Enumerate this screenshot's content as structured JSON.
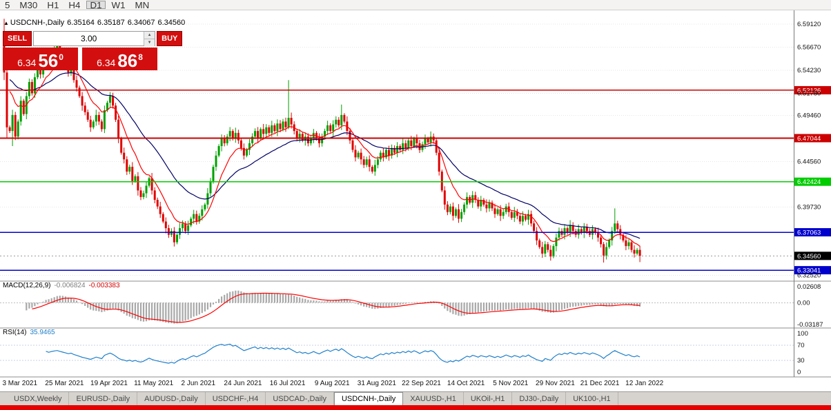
{
  "toolbar": {
    "timeframes": [
      {
        "label": "5",
        "active": false
      },
      {
        "label": "M30",
        "active": false
      },
      {
        "label": "H1",
        "active": false
      },
      {
        "label": "H4",
        "active": false
      },
      {
        "label": "D1",
        "active": true
      },
      {
        "label": "W1",
        "active": false
      },
      {
        "label": "MN",
        "active": false
      }
    ]
  },
  "info_line": {
    "marker": "▲",
    "symbol": "USDCNH-,Daily",
    "open": "6.35164",
    "high": "6.35187",
    "low": "6.34067",
    "close": "6.34560"
  },
  "trade_panel": {
    "sell_label": "SELL",
    "buy_label": "BUY",
    "volume": "3.00",
    "bid": {
      "prefix": "6.34",
      "big": "56",
      "sup": "0"
    },
    "ask": {
      "prefix": "6.34",
      "big": "86",
      "sup": "8"
    }
  },
  "tabs": {
    "items": [
      {
        "label": "USDX,Weekly",
        "active": false
      },
      {
        "label": "EURUSD-,Daily",
        "active": false
      },
      {
        "label": "AUDUSD-,Daily",
        "active": false
      },
      {
        "label": "USDCHF-,H4",
        "active": false
      },
      {
        "label": "USDCAD-,Daily",
        "active": false
      },
      {
        "label": "USDCNH-,Daily",
        "active": true
      },
      {
        "label": "XAUUSD-,H1",
        "active": false
      },
      {
        "label": "UKOil-,H1",
        "active": false
      },
      {
        "label": "DJ30-,Daily",
        "active": false
      },
      {
        "label": "UK100-,H1",
        "active": false
      }
    ]
  },
  "colors": {
    "up": "#00A000",
    "down": "#E00000",
    "ma_fast": "#FF0000",
    "ma_slow": "#000066",
    "hline_red": "#CC0000",
    "hline_green": "#00CC00",
    "hline_blue": "#0000CC",
    "panel_red": "#d30e0e",
    "bottom_strip": "#e60000",
    "rsi_line": "#1e7fcb"
  },
  "chart_data": [
    {
      "id": "main",
      "type": "candlestick",
      "symbol": "USDCNH-,Daily",
      "ylim": [
        6.321,
        6.595
      ],
      "open0": 6.575,
      "closes": [
        6.54,
        6.482,
        6.478,
        6.495,
        6.472,
        6.488,
        6.51,
        6.496,
        6.515,
        6.53,
        6.518,
        6.535,
        6.545,
        6.538,
        6.552,
        6.56,
        6.548,
        6.558,
        6.565,
        6.57,
        6.562,
        6.555,
        6.548,
        6.54,
        6.545,
        6.532,
        6.524,
        6.515,
        6.505,
        6.498,
        6.49,
        6.482,
        6.488,
        6.495,
        6.488,
        6.48,
        6.5,
        6.508,
        6.515,
        6.505,
        6.49,
        6.47,
        6.455,
        6.448,
        6.435,
        6.44,
        6.425,
        6.43,
        6.415,
        6.408,
        6.412,
        6.42,
        6.428,
        6.415,
        6.405,
        6.398,
        6.39,
        6.382,
        6.375,
        6.368,
        6.372,
        6.36,
        6.368,
        6.375,
        6.38,
        6.372,
        6.378,
        6.385,
        6.39,
        6.382,
        6.388,
        6.395,
        6.4,
        6.412,
        6.425,
        6.44,
        6.452,
        6.462,
        6.47,
        6.465,
        6.472,
        6.478,
        6.47,
        6.476,
        6.468,
        6.46,
        6.452,
        6.458,
        6.465,
        6.472,
        6.478,
        6.47,
        6.48,
        6.475,
        6.482,
        6.476,
        6.484,
        6.478,
        6.486,
        6.48,
        6.488,
        6.482,
        6.492,
        6.485,
        6.478,
        6.47,
        6.475,
        6.468,
        6.472,
        6.465,
        6.47,
        6.476,
        6.47,
        6.465,
        6.472,
        6.478,
        6.484,
        6.478,
        6.485,
        6.49,
        6.484,
        6.495,
        6.488,
        6.478,
        6.468,
        6.458,
        6.45,
        6.455,
        6.448,
        6.442,
        6.448,
        6.44,
        6.435,
        6.442,
        6.448,
        6.455,
        6.45,
        6.458,
        6.452,
        6.46,
        6.455,
        6.462,
        6.458,
        6.465,
        6.46,
        6.468,
        6.462,
        6.47,
        6.465,
        6.458,
        6.464,
        6.47,
        6.466,
        6.472,
        6.468,
        6.455,
        6.435,
        6.415,
        6.4,
        6.392,
        6.398,
        6.388,
        6.395,
        6.385,
        6.392,
        6.4,
        6.408,
        6.402,
        6.41,
        6.405,
        6.398,
        6.405,
        6.4,
        6.396,
        6.402,
        6.396,
        6.39,
        6.395,
        6.388,
        6.392,
        6.398,
        6.392,
        6.386,
        6.392,
        6.388,
        6.382,
        6.388,
        6.384,
        6.39,
        6.38,
        6.372,
        6.362,
        6.355,
        6.348,
        6.358,
        6.352,
        6.345,
        6.356,
        6.365,
        6.372,
        6.368,
        6.375,
        6.37,
        6.378,
        6.372,
        6.368,
        6.374,
        6.37,
        6.376,
        6.372,
        6.368,
        6.374,
        6.37,
        6.365,
        6.358,
        6.346,
        6.355,
        6.362,
        6.372,
        6.38,
        6.374,
        6.368,
        6.362,
        6.356,
        6.36,
        6.352,
        6.348,
        6.352,
        6.3456
      ],
      "wick_pattern": [
        0.0028,
        0.0042,
        0.0019,
        0.0055,
        0.0033,
        0.0024,
        0.0049,
        0.0021,
        0.0044,
        0.0036
      ],
      "overrides": {
        "0": {
          "h": 6.597,
          "l": 6.532
        },
        "1": {
          "h": 6.556,
          "l": 6.47
        },
        "3": {
          "l": 6.462
        },
        "61": {
          "l": 6.3555
        },
        "102": {
          "h": 6.532
        },
        "121": {
          "h": 6.506
        },
        "196": {
          "l": 6.3405
        },
        "215": {
          "l": 6.3385
        },
        "219": {
          "h": 6.396
        },
        "228": {
          "l": 6.339
        }
      },
      "up_color": "#00A000",
      "down_color": "#E00000",
      "ma_fast": {
        "name": "MA fast",
        "period": 10,
        "color": "#FF0000"
      },
      "ma_slow": {
        "name": "MA slow",
        "period": 30,
        "color": "#000066"
      },
      "hlines": [
        {
          "price": 6.52126,
          "label": "6.52126",
          "color": "#CC0000"
        },
        {
          "price": 6.47044,
          "label": "6.47044",
          "color": "#CC0000"
        },
        {
          "price": 6.42424,
          "label": "6.42424",
          "color": "#00CC00"
        },
        {
          "price": 6.37063,
          "label": "6.37063",
          "color": "#0000CC"
        },
        {
          "price": 6.33041,
          "label": "6.33041",
          "color": "#0000CC"
        }
      ],
      "current_price": {
        "value": 6.3456,
        "label": "6.34560",
        "color": "#000000"
      },
      "y_ticks": [
        "6.59120",
        "6.56670",
        "6.54230",
        "6.51780",
        "6.49460",
        "6.44560",
        "6.39730",
        "6.32520"
      ],
      "x_labels": [
        "3 Mar 2021",
        "25 Mar 2021",
        "19 Apr 2021",
        "11 May 2021",
        "2 Jun 2021",
        "24 Jun 2021",
        "16 Jul 2021",
        "9 Aug 2021",
        "31 Aug 2021",
        "22 Sep 2021",
        "14 Oct 2021",
        "5 Nov 2021",
        "29 Nov 2021",
        "21 Dec 2021",
        "12 Jan 2022"
      ],
      "x_label_start_index": 6,
      "x_label_step": 16
    },
    {
      "id": "macd",
      "type": "bar",
      "label": "MACD(12,26,9)",
      "value_main": "-0.006824",
      "value_signal": "-0.003383",
      "params": [
        12,
        26,
        9
      ],
      "ylim": [
        -0.0319,
        0.0265
      ],
      "y_ticks": [
        "0.02608",
        "0.00",
        "-0.03187"
      ],
      "hist_color": "#a8a8a8",
      "signal_color": "#FF0000"
    },
    {
      "id": "rsi",
      "type": "line",
      "label": "RSI(14)",
      "value": "35.9465",
      "period": 14,
      "levels": [
        70,
        30
      ],
      "ylim": [
        0,
        100
      ],
      "y_ticks": [
        "100",
        "70",
        "30",
        "0"
      ],
      "line_color": "#1e7fcb"
    }
  ]
}
